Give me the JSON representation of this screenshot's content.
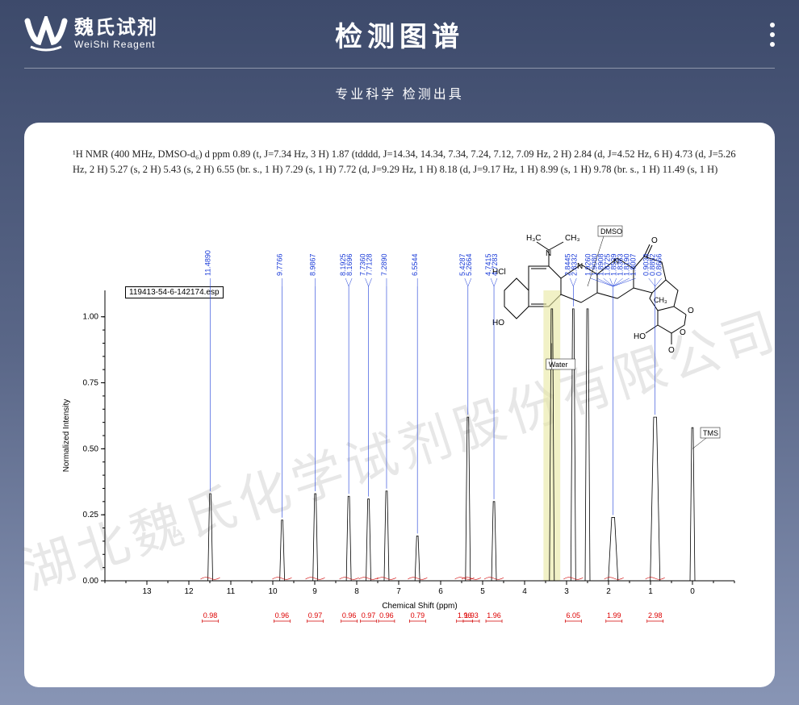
{
  "brand": {
    "cn": "魏氏试剂",
    "en": "WeiShi Reagent"
  },
  "title": "检测图谱",
  "subtitle": "专业科学 检测出具",
  "watermark": "湖北魏氏化学试剂股份有限公司",
  "description": "¹H NMR (400 MHz, DMSO-d₆) d ppm 0.89 (t, J=7.34 Hz, 3 H) 1.87 (tdddd, J=14.34, 14.34, 7.34, 7.24, 7.12, 7.09 Hz, 2 H) 2.84 (d, J=4.52 Hz, 6 H) 4.73 (d, J=5.26 Hz, 2 H) 5.27 (s, 2 H) 5.43 (s, 2 H) 6.55 (br. s., 1 H) 7.29 (s, 1 H) 7.72 (d, J=9.29 Hz, 1 H) 8.18 (d, J=9.17 Hz, 1 H) 8.99 (s, 1 H) 9.78 (br. s., 1 H) 11.49 (s, 1 H)",
  "esp_label": "119413-54-6-142174.esp",
  "chart": {
    "type": "nmr-spectrum",
    "xlabel": "Chemical Shift (ppm)",
    "ylabel": "Normalized Intensity",
    "xlim": [
      14,
      -1
    ],
    "ylim": [
      0,
      1.1
    ],
    "yticks": [
      0,
      0.25,
      0.5,
      0.75,
      1.0
    ],
    "xticks": [
      13,
      12,
      11,
      10,
      9,
      8,
      7,
      6,
      5,
      4,
      3,
      2,
      1,
      0
    ],
    "background_color": "#ffffff",
    "axis_color": "#000000",
    "peak_line_color": "#1a3bd8",
    "spectrum_color": "#000000",
    "integration_color": "#d00000",
    "highlight_color": "#e8e8a0",
    "annotations": [
      {
        "label": "DMSO",
        "ppm": 2.5
      },
      {
        "label": "Water",
        "ppm": 3.35
      },
      {
        "label": "TMS",
        "ppm": 0.0
      }
    ],
    "peaks": [
      {
        "ppm": 11.489,
        "h": 0.33,
        "labels": [
          "11.4890"
        ]
      },
      {
        "ppm": 9.7766,
        "h": 0.23,
        "labels": [
          "9.7766"
        ]
      },
      {
        "ppm": 8.9867,
        "h": 0.33,
        "labels": [
          "8.9867"
        ]
      },
      {
        "ppm": 8.19,
        "h": 0.32,
        "labels": [
          "8.1925",
          "8.1696"
        ]
      },
      {
        "ppm": 7.72,
        "h": 0.31,
        "labels": [
          "7.7360",
          "7.7128"
        ]
      },
      {
        "ppm": 7.289,
        "h": 0.34,
        "labels": [
          "7.2890"
        ]
      },
      {
        "ppm": 6.5544,
        "h": 0.17,
        "labels": [
          "6.5544"
        ]
      },
      {
        "ppm": 5.35,
        "h": 0.62,
        "labels": [
          "5.4287",
          "5.2664"
        ]
      },
      {
        "ppm": 4.73,
        "h": 0.3,
        "labels": [
          "4.7415",
          "4.7283"
        ]
      },
      {
        "ppm": 3.35,
        "h": 1.03,
        "labels": [],
        "highlight": true
      },
      {
        "ppm": 2.84,
        "h": 1.03,
        "labels": [
          "2.8445",
          "2.8332"
        ]
      },
      {
        "ppm": 2.5,
        "h": 1.03,
        "labels": []
      },
      {
        "ppm": 1.89,
        "h": 0.24,
        "labels": [
          "1.9260",
          "1.9080",
          "1.8908",
          "1.8725",
          "1.8539",
          "1.8363",
          "1.8190",
          "1.8007"
        ]
      },
      {
        "ppm": 0.89,
        "h": 0.62,
        "labels": [
          "0.9033",
          "0.8852",
          "0.8666"
        ]
      },
      {
        "ppm": 0.0,
        "h": 0.58,
        "labels": []
      }
    ],
    "integrations": [
      {
        "ppm": 11.49,
        "val": "0.98"
      },
      {
        "ppm": 9.78,
        "val": "0.96"
      },
      {
        "ppm": 8.99,
        "val": "0.97"
      },
      {
        "ppm": 8.18,
        "val": "0.96"
      },
      {
        "ppm": 7.72,
        "val": "0.97"
      },
      {
        "ppm": 7.29,
        "val": "0.96"
      },
      {
        "ppm": 6.55,
        "val": "0.79"
      },
      {
        "ppm": 5.43,
        "val": "1.96"
      },
      {
        "ppm": 5.27,
        "val": "1.93"
      },
      {
        "ppm": 4.73,
        "val": "1.96"
      },
      {
        "ppm": 2.84,
        "val": "6.05"
      },
      {
        "ppm": 1.87,
        "val": "1.99"
      },
      {
        "ppm": 0.89,
        "val": "2.98"
      }
    ]
  },
  "molecule": {
    "labels": [
      "H₃C",
      "CH₃",
      "N",
      "HCl",
      "HO",
      "N",
      "N",
      "O",
      "O",
      "O",
      "O",
      "HO",
      "CH₃"
    ]
  }
}
